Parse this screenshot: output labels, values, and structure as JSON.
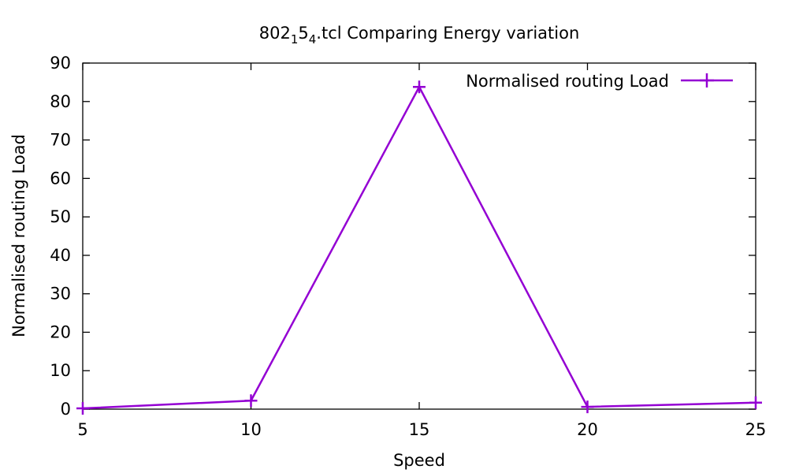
{
  "chart_data": {
    "type": "line",
    "title": {
      "main": "802",
      "sub1": "1",
      "mid": "5",
      "sub2": "4",
      "rest": ".tcl Comparing Energy variation"
    },
    "xlabel": "Speed",
    "ylabel": "Normalised routing Load",
    "xlim": [
      5,
      25
    ],
    "ylim": [
      0,
      90
    ],
    "x_ticks": [
      5,
      10,
      15,
      20,
      25
    ],
    "y_ticks": [
      0,
      10,
      20,
      30,
      40,
      50,
      60,
      70,
      80,
      90
    ],
    "grid": false,
    "legend_position": "top-right",
    "series": [
      {
        "name": "Normalised routing Load",
        "color": "#9400d3",
        "marker": "plus",
        "x": [
          5,
          10,
          15,
          20,
          25
        ],
        "y": [
          0.2,
          2.2,
          83.8,
          0.6,
          1.7
        ]
      }
    ]
  }
}
